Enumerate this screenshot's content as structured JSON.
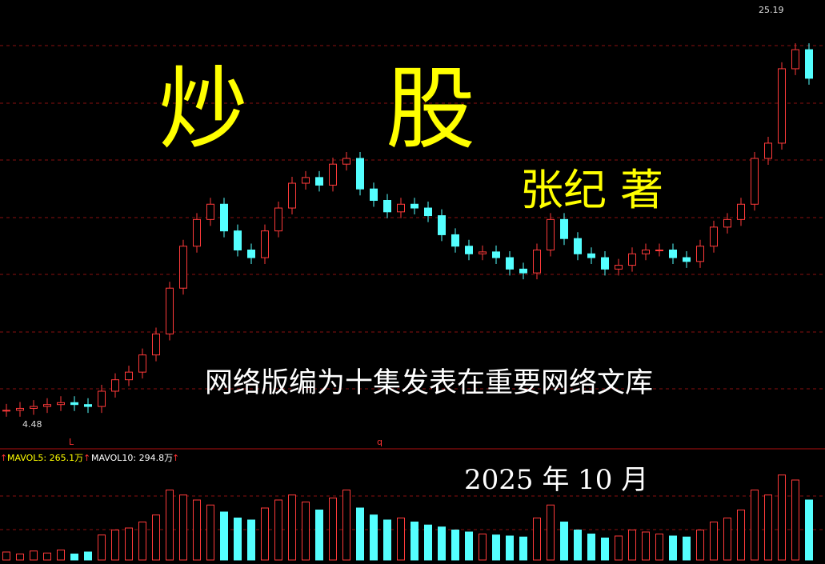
{
  "cover": {
    "title_char_1": "炒",
    "title_char_2": "股",
    "author": "张纪 著",
    "description": "网络版编为十集发表在重要网络文库",
    "date": "2025 年 10 月"
  },
  "chart": {
    "high_label": "25.19",
    "low_label": "4.48",
    "marker_1": "L",
    "marker_2": "q",
    "arrow": "↑",
    "mavol5": "MAVOL5: 265.1万",
    "mavol10": "MAVOL10: 294.8万",
    "ylim": [
      4.3,
      25.6
    ],
    "closes": [
      4.6,
      4.7,
      4.8,
      4.9,
      5.0,
      4.9,
      4.8,
      5.6,
      6.2,
      6.6,
      7.5,
      8.6,
      11.0,
      13.2,
      14.6,
      15.4,
      14.0,
      13.0,
      12.6,
      14.0,
      15.2,
      16.5,
      16.8,
      16.4,
      17.5,
      17.8,
      16.2,
      15.6,
      15.0,
      15.4,
      15.2,
      14.8,
      13.8,
      13.2,
      12.8,
      12.9,
      12.6,
      12.0,
      11.8,
      13.0,
      14.6,
      13.6,
      12.8,
      12.6,
      12.0,
      12.2,
      12.8,
      13.0,
      13.0,
      12.6,
      12.4,
      13.2,
      14.2,
      14.6,
      15.4,
      17.8,
      18.6,
      22.5,
      23.5,
      22.0
    ],
    "vol_lim": [
      0,
      1000
    ],
    "volumes": [
      80,
      60,
      90,
      70,
      100,
      60,
      80,
      250,
      300,
      320,
      380,
      450,
      700,
      650,
      600,
      550,
      480,
      420,
      400,
      520,
      600,
      650,
      580,
      500,
      620,
      700,
      520,
      450,
      400,
      420,
      380,
      350,
      330,
      300,
      280,
      260,
      250,
      240,
      230,
      420,
      550,
      380,
      300,
      260,
      220,
      240,
      300,
      280,
      260,
      240,
      230,
      300,
      380,
      420,
      500,
      700,
      650,
      850,
      800,
      600
    ]
  }
}
